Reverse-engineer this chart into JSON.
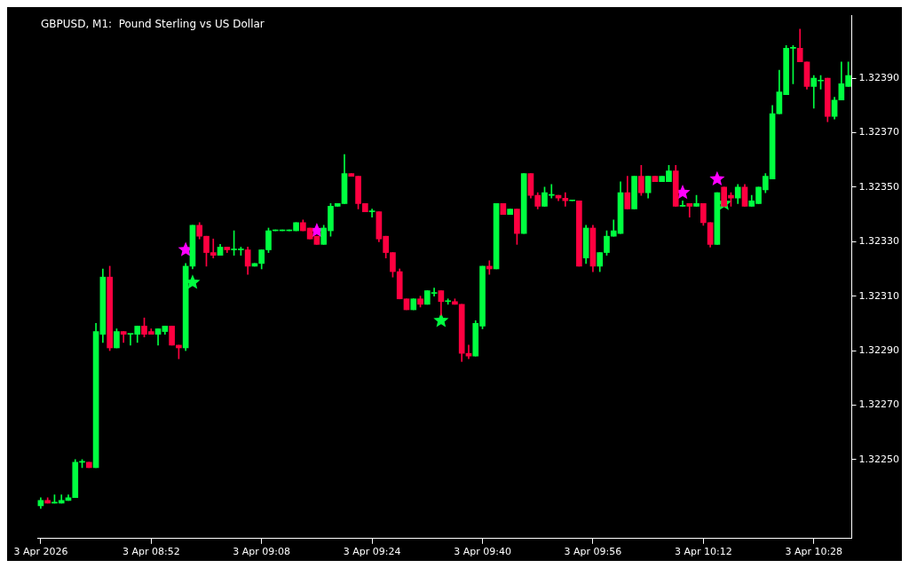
{
  "chart_data": {
    "type": "candlestick",
    "title": "GBPUSD, M1:  Pound Sterling vs US Dollar",
    "categories": [
      "3 Apr 2026",
      null,
      null,
      null,
      null,
      null,
      null,
      null,
      null,
      null,
      null,
      null,
      null,
      null,
      null,
      null,
      "3 Apr 08:52",
      null,
      null,
      null,
      null,
      null,
      null,
      null,
      null,
      null,
      null,
      null,
      null,
      null,
      null,
      null,
      "3 Apr 09:08",
      null,
      null,
      null,
      null,
      null,
      null,
      null,
      null,
      null,
      null,
      null,
      null,
      null,
      null,
      null,
      "3 Apr 09:24",
      null,
      null,
      null,
      null,
      null,
      null,
      null,
      null,
      null,
      null,
      null,
      null,
      null,
      null,
      null,
      "3 Apr 09:40",
      null,
      null,
      null,
      null,
      null,
      null,
      null,
      null,
      null,
      null,
      null,
      null,
      null,
      null,
      null,
      "3 Apr 09:56",
      null,
      null,
      null,
      null,
      null,
      null,
      null,
      null,
      null,
      null,
      null,
      null,
      null,
      null,
      null,
      "3 Apr 10:12",
      null,
      null,
      null,
      null,
      null,
      null,
      null,
      null,
      null,
      null,
      null,
      null,
      null,
      null,
      null,
      "3 Apr 10:28",
      null,
      null,
      null,
      null,
      null
    ],
    "ohlc": [
      [
        1.32233,
        1.32236,
        1.32232,
        1.32235
      ],
      [
        1.32235,
        1.32236,
        1.32234,
        1.32234
      ],
      [
        1.32234,
        1.32237,
        1.32234,
        1.32234
      ],
      [
        1.32234,
        1.32237,
        1.32234,
        1.32235
      ],
      [
        1.32235,
        1.32237,
        1.32235,
        1.32236
      ],
      [
        1.32236,
        1.3225,
        1.32236,
        1.32249
      ],
      [
        1.32249,
        1.3225,
        1.32247,
        1.32249
      ],
      [
        1.32249,
        1.32249,
        1.32247,
        1.32247
      ],
      [
        1.32247,
        1.323,
        1.32247,
        1.32297
      ],
      [
        1.32296,
        1.3232,
        1.32293,
        1.32317
      ],
      [
        1.32317,
        1.32321,
        1.3229,
        1.32291
      ],
      [
        1.32291,
        1.32298,
        1.32291,
        1.32297
      ],
      [
        1.32297,
        1.32297,
        1.32293,
        1.32296
      ],
      [
        1.32296,
        1.32296,
        1.32292,
        1.32296
      ],
      [
        1.32296,
        1.32299,
        1.32293,
        1.32299
      ],
      [
        1.32299,
        1.32302,
        1.32295,
        1.32296
      ],
      [
        1.32297,
        1.32298,
        1.32296,
        1.32296
      ],
      [
        1.32296,
        1.32298,
        1.32292,
        1.32298
      ],
      [
        1.32297,
        1.32299,
        1.32296,
        1.32299
      ],
      [
        1.32299,
        1.32299,
        1.32292,
        1.32292
      ],
      [
        1.32292,
        1.32292,
        1.32287,
        1.32291
      ],
      [
        1.32291,
        1.32322,
        1.3229,
        1.32321
      ],
      [
        1.32321,
        1.32336,
        1.3232,
        1.32336
      ],
      [
        1.32336,
        1.32337,
        1.32331,
        1.32332
      ],
      [
        1.32332,
        1.32332,
        1.32321,
        1.32326
      ],
      [
        1.32326,
        1.32331,
        1.32324,
        1.32325
      ],
      [
        1.32325,
        1.32329,
        1.32325,
        1.32328
      ],
      [
        1.32328,
        1.32328,
        1.32326,
        1.32327
      ],
      [
        1.32327,
        1.32334,
        1.32325,
        1.32327
      ],
      [
        1.32327,
        1.32328,
        1.32325,
        1.32327
      ],
      [
        1.32327,
        1.32328,
        1.32318,
        1.32321
      ],
      [
        1.32321,
        1.32322,
        1.32321,
        1.32322
      ],
      [
        1.32322,
        1.32327,
        1.3232,
        1.32327
      ],
      [
        1.32327,
        1.32335,
        1.32326,
        1.32334
      ],
      [
        1.32334,
        1.32334,
        1.32334,
        1.32334
      ],
      [
        1.32334,
        1.32334,
        1.32334,
        1.32334
      ],
      [
        1.32334,
        1.32334,
        1.32334,
        1.32334
      ],
      [
        1.32334,
        1.32337,
        1.32334,
        1.32337
      ],
      [
        1.32337,
        1.32338,
        1.32334,
        1.32334
      ],
      [
        1.32335,
        1.32335,
        1.32331,
        1.32331
      ],
      [
        1.32332,
        1.32332,
        1.32329,
        1.32329
      ],
      [
        1.32329,
        1.32336,
        1.32329,
        1.32335
      ],
      [
        1.32334,
        1.32344,
        1.32332,
        1.32343
      ],
      [
        1.32343,
        1.32344,
        1.32343,
        1.32344
      ],
      [
        1.32344,
        1.32362,
        1.32344,
        1.32355
      ],
      [
        1.32355,
        1.32355,
        1.32354,
        1.32354
      ],
      [
        1.32354,
        1.32354,
        1.32342,
        1.32344
      ],
      [
        1.32344,
        1.32344,
        1.32341,
        1.32341
      ],
      [
        1.32341,
        1.32342,
        1.32339,
        1.32341
      ],
      [
        1.32341,
        1.32341,
        1.3233,
        1.32331
      ],
      [
        1.32332,
        1.32332,
        1.32324,
        1.32326
      ],
      [
        1.32326,
        1.32326,
        1.32317,
        1.32319
      ],
      [
        1.32319,
        1.3232,
        1.32309,
        1.32309
      ],
      [
        1.32309,
        1.32309,
        1.32305,
        1.32305
      ],
      [
        1.32305,
        1.32309,
        1.32305,
        1.32309
      ],
      [
        1.32309,
        1.3231,
        1.32306,
        1.32307
      ],
      [
        1.32307,
        1.32312,
        1.32307,
        1.32312
      ],
      [
        1.32311,
        1.32313,
        1.3231,
        1.32311
      ],
      [
        1.32312,
        1.32312,
        1.32303,
        1.32308
      ],
      [
        1.32308,
        1.32309,
        1.32307,
        1.32308
      ],
      [
        1.32308,
        1.32309,
        1.32307,
        1.32307
      ],
      [
        1.32307,
        1.32307,
        1.32286,
        1.32289
      ],
      [
        1.32289,
        1.32292,
        1.32287,
        1.32288
      ],
      [
        1.32288,
        1.32301,
        1.32288,
        1.323
      ],
      [
        1.32299,
        1.32321,
        1.32298,
        1.32321
      ],
      [
        1.32321,
        1.32323,
        1.32318,
        1.3232
      ],
      [
        1.3232,
        1.32344,
        1.3232,
        1.32344
      ],
      [
        1.32344,
        1.32344,
        1.3234,
        1.3234
      ],
      [
        1.3234,
        1.32342,
        1.3234,
        1.32342
      ],
      [
        1.32342,
        1.32342,
        1.32329,
        1.32333
      ],
      [
        1.32333,
        1.32355,
        1.32333,
        1.32355
      ],
      [
        1.32355,
        1.32355,
        1.32346,
        1.32347
      ],
      [
        1.32347,
        1.32348,
        1.32342,
        1.32343
      ],
      [
        1.32343,
        1.3235,
        1.32343,
        1.32348
      ],
      [
        1.32347,
        1.32351,
        1.32346,
        1.32347
      ],
      [
        1.32347,
        1.32347,
        1.32345,
        1.32346
      ],
      [
        1.32346,
        1.32348,
        1.32343,
        1.32345
      ],
      [
        1.32345,
        1.32345,
        1.32345,
        1.32345
      ],
      [
        1.32345,
        1.32345,
        1.32321,
        1.32321
      ],
      [
        1.32324,
        1.32336,
        1.32322,
        1.32335
      ],
      [
        1.32335,
        1.32336,
        1.32319,
        1.32321
      ],
      [
        1.32321,
        1.32326,
        1.32319,
        1.32326
      ],
      [
        1.32326,
        1.32334,
        1.32325,
        1.32332
      ],
      [
        1.32332,
        1.32338,
        1.32332,
        1.32334
      ],
      [
        1.32333,
        1.32352,
        1.32333,
        1.32348
      ],
      [
        1.32348,
        1.32354,
        1.32342,
        1.32342
      ],
      [
        1.32342,
        1.32354,
        1.32342,
        1.32354
      ],
      [
        1.32354,
        1.32358,
        1.32347,
        1.32348
      ],
      [
        1.32348,
        1.32354,
        1.32346,
        1.32354
      ],
      [
        1.32354,
        1.32354,
        1.32352,
        1.32352
      ],
      [
        1.32352,
        1.32354,
        1.32352,
        1.32354
      ],
      [
        1.32352,
        1.32358,
        1.32352,
        1.32356
      ],
      [
        1.32356,
        1.32358,
        1.32343,
        1.32343
      ],
      [
        1.32343,
        1.32345,
        1.32343,
        1.32343
      ],
      [
        1.32344,
        1.32344,
        1.32339,
        1.32343
      ],
      [
        1.32343,
        1.32347,
        1.32343,
        1.32344
      ],
      [
        1.32344,
        1.32344,
        1.32336,
        1.32337
      ],
      [
        1.32337,
        1.32337,
        1.32328,
        1.32329
      ],
      [
        1.32329,
        1.32348,
        1.32329,
        1.32348
      ],
      [
        1.3235,
        1.3235,
        1.32343,
        1.32343
      ],
      [
        1.32347,
        1.32348,
        1.32343,
        1.32346
      ],
      [
        1.32346,
        1.32351,
        1.32344,
        1.3235
      ],
      [
        1.3235,
        1.32351,
        1.32343,
        1.32343
      ],
      [
        1.32343,
        1.32347,
        1.32343,
        1.32345
      ],
      [
        1.32344,
        1.3235,
        1.32344,
        1.3235
      ],
      [
        1.32349,
        1.32355,
        1.32348,
        1.32354
      ],
      [
        1.32353,
        1.3238,
        1.32353,
        1.32377
      ],
      [
        1.32377,
        1.32393,
        1.32377,
        1.32385
      ],
      [
        1.32384,
        1.32402,
        1.32384,
        1.32401
      ],
      [
        1.32401,
        1.32402,
        1.32388,
        1.32401
      ],
      [
        1.32401,
        1.32408,
        1.32396,
        1.32396
      ],
      [
        1.32396,
        1.32396,
        1.32386,
        1.32387
      ],
      [
        1.32387,
        1.32391,
        1.32379,
        1.3239
      ],
      [
        1.32389,
        1.32391,
        1.32386,
        1.32389
      ],
      [
        1.3239,
        1.3239,
        1.32374,
        1.32376
      ],
      [
        1.32376,
        1.32383,
        1.32375,
        1.32382
      ],
      [
        1.32382,
        1.32396,
        1.32382,
        1.32388
      ],
      [
        1.32387,
        1.32396,
        1.32387,
        1.32391
      ]
    ],
    "colors": [
      "#00ff40",
      "#ff0040",
      "#00ff40",
      "#00ff40",
      "#00ff40",
      "#00ff40",
      "#00ff40",
      "#ff0040",
      "#00ff40",
      "#00ff40",
      "#ff0040",
      "#00ff40",
      "#ff0040",
      "#00ff40",
      "#00ff40",
      "#ff0040",
      "#ff0040",
      "#00ff40",
      "#00ff40",
      "#ff0040",
      "#ff0040",
      "#00ff40",
      "#00ff40",
      "#ff0040",
      "#ff0040",
      "#ff0040",
      "#00ff40",
      "#ff0040",
      "#00ff40",
      "#00ff40",
      "#ff0040",
      "#00ff40",
      "#00ff40",
      "#00ff40",
      "#00ff40",
      "#00ff40",
      "#00ff40",
      "#00ff40",
      "#ff0040",
      "#ff0040",
      "#ff0040",
      "#00ff40",
      "#00ff40",
      "#00ff40",
      "#00ff40",
      "#ff0040",
      "#ff0040",
      "#ff0040",
      "#00ff40",
      "#ff0040",
      "#ff0040",
      "#ff0040",
      "#ff0040",
      "#ff0040",
      "#00ff40",
      "#ff0040",
      "#00ff40",
      "#00ff40",
      "#ff0040",
      "#00ff40",
      "#ff0040",
      "#ff0040",
      "#ff0040",
      "#00ff40",
      "#00ff40",
      "#ff0040",
      "#00ff40",
      "#ff0040",
      "#00ff40",
      "#ff0040",
      "#00ff40",
      "#ff0040",
      "#ff0040",
      "#00ff40",
      "#00ff40",
      "#ff0040",
      "#ff0040",
      "#00ff40",
      "#ff0040",
      "#00ff40",
      "#ff0040",
      "#00ff40",
      "#00ff40",
      "#00ff40",
      "#00ff40",
      "#ff0040",
      "#00ff40",
      "#ff0040",
      "#00ff40",
      "#ff0040",
      "#00ff40",
      "#00ff40",
      "#ff0040",
      "#00ff40",
      "#ff0040",
      "#00ff40",
      "#ff0040",
      "#ff0040",
      "#00ff40",
      "#ff0040",
      "#ff0040",
      "#00ff40",
      "#ff0040",
      "#00ff40",
      "#00ff40",
      "#00ff40",
      "#00ff40",
      "#00ff40",
      "#00ff40",
      "#00ff40",
      "#ff0040",
      "#ff0040",
      "#00ff40",
      "#00ff40",
      "#ff0040",
      "#00ff40",
      "#00ff40",
      "#00ff40"
    ],
    "series": [
      {
        "type": "scatter",
        "marker": "star",
        "color": "#ff00ff",
        "values": [
          null,
          null,
          null,
          null,
          null,
          null,
          null,
          null,
          null,
          null,
          null,
          null,
          null,
          null,
          null,
          null,
          null,
          null,
          null,
          null,
          null,
          1.32327,
          null,
          null,
          null,
          null,
          null,
          null,
          null,
          null,
          null,
          null,
          null,
          null,
          null,
          null,
          null,
          null,
          null,
          null,
          1.32334,
          null,
          null,
          null,
          null,
          null,
          null,
          null,
          null,
          null,
          null,
          null,
          null,
          null,
          null,
          null,
          null,
          null,
          null,
          null,
          null,
          null,
          null,
          null,
          null,
          null,
          null,
          null,
          null,
          null,
          null,
          null,
          null,
          null,
          null,
          null,
          null,
          null,
          null,
          null,
          null,
          null,
          null,
          null,
          null,
          null,
          null,
          null,
          null,
          null,
          null,
          null,
          null,
          1.32348,
          null,
          null,
          null,
          null,
          1.32353,
          null,
          null,
          null,
          null,
          null,
          null,
          null,
          null,
          null,
          null,
          null,
          null,
          null,
          null,
          null,
          null,
          null,
          null,
          null
        ]
      },
      {
        "type": "scatter",
        "marker": "star",
        "color": "#00ff40",
        "values": [
          null,
          null,
          null,
          null,
          null,
          null,
          null,
          null,
          null,
          null,
          null,
          null,
          null,
          null,
          null,
          null,
          null,
          null,
          null,
          null,
          null,
          null,
          1.32315,
          null,
          null,
          null,
          null,
          null,
          null,
          null,
          null,
          null,
          null,
          null,
          null,
          null,
          null,
          null,
          null,
          null,
          null,
          null,
          null,
          null,
          null,
          null,
          null,
          null,
          null,
          null,
          null,
          null,
          null,
          null,
          null,
          null,
          null,
          null,
          1.32301,
          null,
          null,
          null,
          null,
          null,
          null,
          null,
          null,
          null,
          null,
          null,
          null,
          null,
          null,
          null,
          null,
          null,
          null,
          null,
          null,
          null,
          null,
          null,
          null,
          null,
          null,
          null,
          null,
          null,
          null,
          null,
          null,
          null,
          null,
          null,
          null,
          null,
          null,
          null,
          null,
          1.32344,
          null,
          null,
          null,
          null,
          null,
          null,
          null,
          null,
          null,
          null,
          null,
          null,
          null,
          null,
          null,
          null,
          null,
          null
        ]
      }
    ],
    "ylim": [
      1.32221,
      1.32413
    ],
    "yticks": [
      {
        "value": 1.3225,
        "label": "1.32250"
      },
      {
        "value": 1.3227,
        "label": "1.32270"
      },
      {
        "value": 1.3229,
        "label": "1.32290"
      },
      {
        "value": 1.3231,
        "label": "1.32310"
      },
      {
        "value": 1.3233,
        "label": "1.32330"
      },
      {
        "value": 1.3235,
        "label": "1.32350"
      },
      {
        "value": 1.3237,
        "label": "1.32370"
      },
      {
        "value": 1.3239,
        "label": "1.32390"
      }
    ],
    "grid": false,
    "legend": false
  }
}
